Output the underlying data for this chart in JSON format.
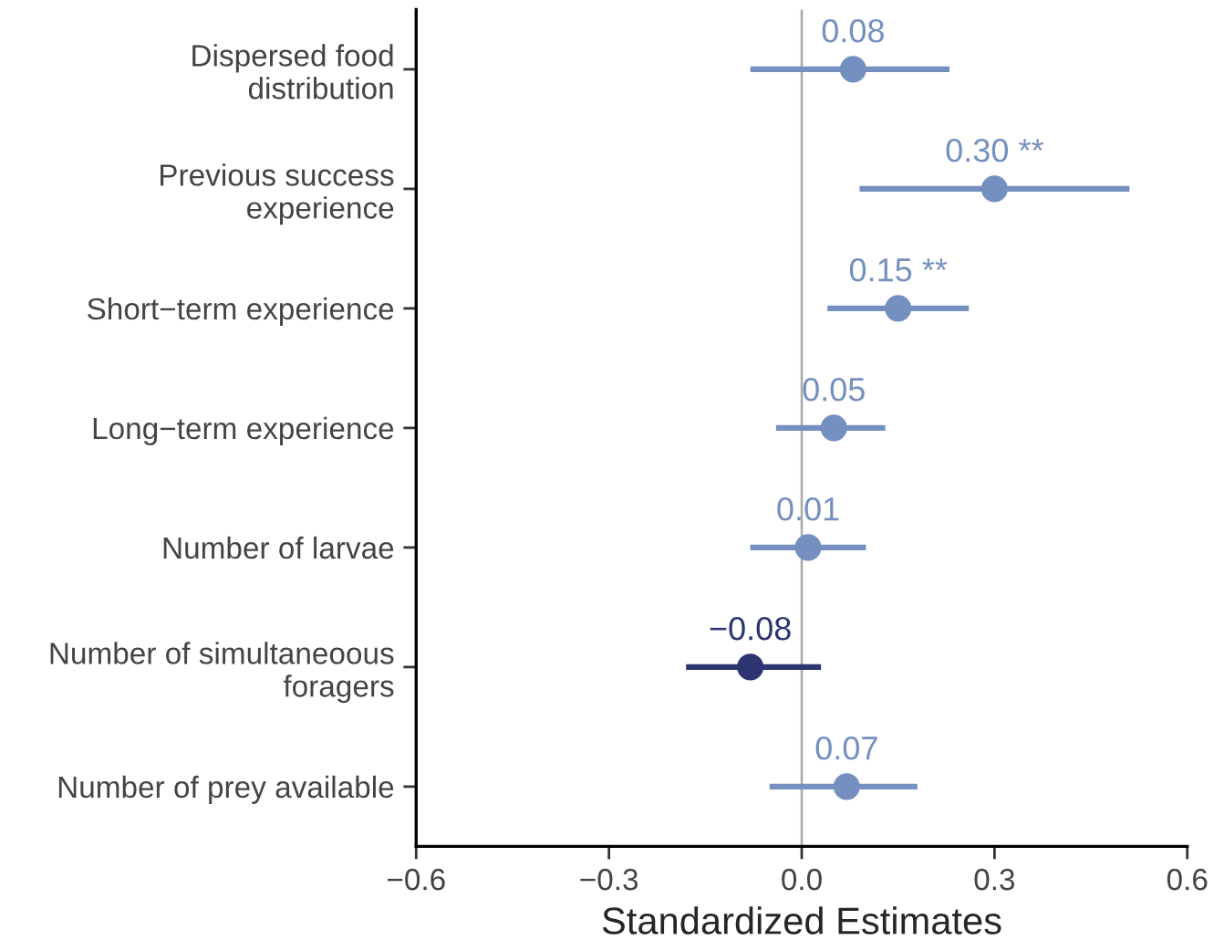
{
  "chart_data": {
    "type": "scatter",
    "orientation": "horizontal",
    "categories": [
      "Dispersed food\ndistribution",
      "Previous success\nexperience",
      "Short−term experience",
      "Long−term experience",
      "Number of larvae",
      "Number of simultaneoous\nforagers",
      "Number of prey available"
    ],
    "values": [
      0.08,
      0.3,
      0.15,
      0.05,
      0.01,
      -0.08,
      0.07
    ],
    "errors": [
      [
        -0.08,
        0.23
      ],
      [
        0.09,
        0.51
      ],
      [
        0.04,
        0.26
      ],
      [
        -0.04,
        0.13
      ],
      [
        -0.08,
        0.1
      ],
      [
        -0.18,
        0.03
      ],
      [
        -0.05,
        0.18
      ]
    ],
    "value_labels": [
      "0.08",
      "0.30 **",
      "0.15 **",
      "0.05",
      "0.01",
      "−0.08",
      "0.07"
    ],
    "colors": [
      "#7590c0",
      "#7590c0",
      "#7590c0",
      "#7590c0",
      "#7590c0",
      "#2c3572",
      "#7590c0"
    ],
    "xlabel": "Standardized Estimates",
    "xlim": [
      -0.6,
      0.6
    ],
    "xticks": [
      {
        "value": -0.6,
        "label": "−0.6"
      },
      {
        "value": -0.3,
        "label": "−0.3"
      },
      {
        "value": 0,
        "label": "0.0"
      },
      0.3,
      0.6
    ],
    "ref_lines": [
      {
        "axis": "x",
        "value": 0,
        "color": "#a8a8a8"
      }
    ],
    "marker": "circle",
    "grid": false
  }
}
